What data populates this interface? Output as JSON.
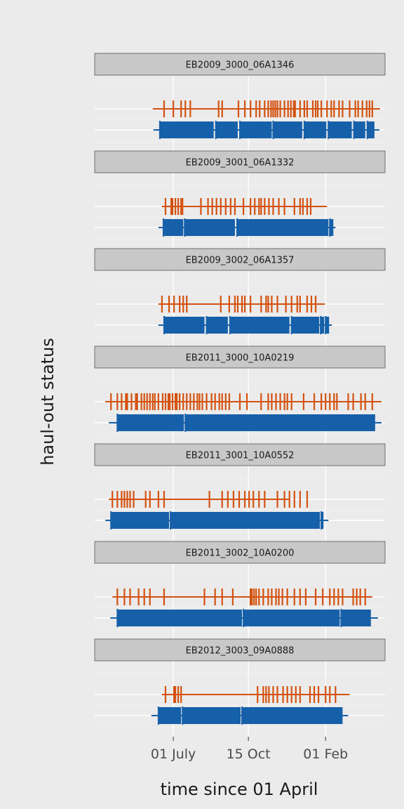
{
  "chart_data": {
    "type": "strip-timeline",
    "xlabel": "time since 01 April",
    "ylabel": "haul-out status",
    "x_ticks": [
      {
        "label": "01 July",
        "day": 91
      },
      {
        "label": "15 Oct",
        "day": 197
      },
      {
        "label": "01 Feb",
        "day": 306
      }
    ],
    "xlim": [
      -20,
      390
    ],
    "grid": true,
    "legend": "none",
    "colors": {
      "hauled_out": "#d4520f",
      "at_sea": "#1660aa"
    },
    "panels": [
      {
        "id": "EB2009_3000_06A1346",
        "at_sea_range": [
          63,
          382
        ],
        "at_sea_bars": [
          [
            72,
            148
          ],
          [
            151,
            182
          ],
          [
            185,
            230
          ],
          [
            232,
            273
          ],
          [
            276,
            307
          ],
          [
            310,
            343
          ],
          [
            346,
            362
          ],
          [
            365,
            375
          ]
        ],
        "haul_range": [
          62,
          383
        ],
        "haul_ticks": [
          78,
          91,
          102,
          108,
          115,
          155,
          160,
          183,
          192,
          200,
          208,
          213,
          220,
          225,
          229,
          232,
          235,
          238,
          242,
          248,
          253,
          257,
          261,
          263,
          270,
          276,
          280,
          288,
          292,
          295,
          300,
          308,
          314,
          318,
          325,
          330,
          340,
          348,
          352,
          358,
          364,
          368,
          372
        ]
      },
      {
        "id": "EB2009_3001_06A1332",
        "at_sea_range": [
          70,
          320
        ],
        "at_sea_bars": [
          [
            77,
            105
          ],
          [
            107,
            178
          ],
          [
            181,
            310
          ],
          [
            312,
            317
          ]
        ],
        "haul_range": [
          75,
          308
        ],
        "haul_ticks": [
          80,
          88,
          90,
          94,
          98,
          102,
          104,
          130,
          140,
          146,
          152,
          158,
          165,
          172,
          178,
          190,
          200,
          206,
          212,
          215,
          220,
          226,
          232,
          240,
          248,
          262,
          270,
          274,
          280,
          285
        ]
      },
      {
        "id": "EB2009_3002_06A1357",
        "at_sea_range": [
          70,
          315
        ],
        "at_sea_bars": [
          [
            78,
            135
          ],
          [
            138,
            168
          ],
          [
            171,
            255
          ],
          [
            258,
            297
          ],
          [
            299,
            304
          ],
          [
            306,
            311
          ]
        ],
        "haul_range": [
          70,
          305
        ],
        "haul_ticks": [
          75,
          85,
          92,
          100,
          105,
          110,
          158,
          170,
          178,
          182,
          188,
          192,
          200,
          215,
          222,
          225,
          230,
          238,
          250,
          258,
          266,
          270,
          280,
          286,
          292
        ]
      },
      {
        "id": "EB2011_3000_10A0219",
        "at_sea_range": [
          0,
          385
        ],
        "at_sea_bars": [
          [
            12,
            106
          ],
          [
            108,
            376
          ]
        ],
        "haul_range": [
          -5,
          385
        ],
        "haul_ticks": [
          3,
          12,
          18,
          24,
          26,
          32,
          38,
          40,
          46,
          50,
          54,
          58,
          62,
          65,
          70,
          76,
          80,
          84,
          86,
          90,
          94,
          96,
          100,
          105,
          110,
          115,
          120,
          125,
          128,
          132,
          138,
          145,
          150,
          156,
          160,
          165,
          170,
          185,
          195,
          215,
          225,
          230,
          236,
          242,
          248,
          252,
          258,
          275,
          290,
          300,
          306,
          312,
          318,
          322,
          338,
          345,
          356,
          362,
          372
        ]
      },
      {
        "id": "EB2011_3001_10A0552",
        "at_sea_range": [
          -5,
          310
        ],
        "at_sea_bars": [
          [
            3,
            85
          ],
          [
            87,
            298
          ],
          [
            300,
            303
          ]
        ],
        "haul_range": [
          0,
          255
        ],
        "haul_ticks": [
          5,
          12,
          18,
          22,
          26,
          30,
          35,
          52,
          58,
          70,
          78,
          142,
          160,
          168,
          176,
          184,
          192,
          198,
          204,
          212,
          220,
          238,
          248,
          255,
          262,
          270,
          280
        ]
      },
      {
        "id": "EB2011_3002_10A0200",
        "at_sea_range": [
          2,
          380
        ],
        "at_sea_bars": [
          [
            12,
            188
          ],
          [
            190,
            326
          ],
          [
            328,
            370
          ]
        ],
        "haul_range": [
          5,
          372
        ],
        "haul_ticks": [
          12,
          22,
          30,
          42,
          50,
          58,
          78,
          135,
          150,
          160,
          175,
          200,
          202,
          205,
          208,
          212,
          218,
          225,
          230,
          236,
          240,
          245,
          252,
          262,
          270,
          278,
          292,
          302,
          312,
          318,
          324,
          330,
          345,
          350,
          355,
          362
        ]
      },
      {
        "id": "EB2012_3003_09A0888",
        "at_sea_range": [
          60,
          338
        ],
        "at_sea_bars": [
          [
            70,
            102
          ],
          [
            104,
            186
          ],
          [
            188,
            330
          ]
        ],
        "haul_range": [
          75,
          340
        ],
        "haul_ticks": [
          80,
          92,
          94,
          98,
          102,
          210,
          218,
          222,
          226,
          232,
          238,
          246,
          252,
          258,
          264,
          270,
          284,
          290,
          296,
          306,
          312,
          320
        ]
      }
    ]
  }
}
